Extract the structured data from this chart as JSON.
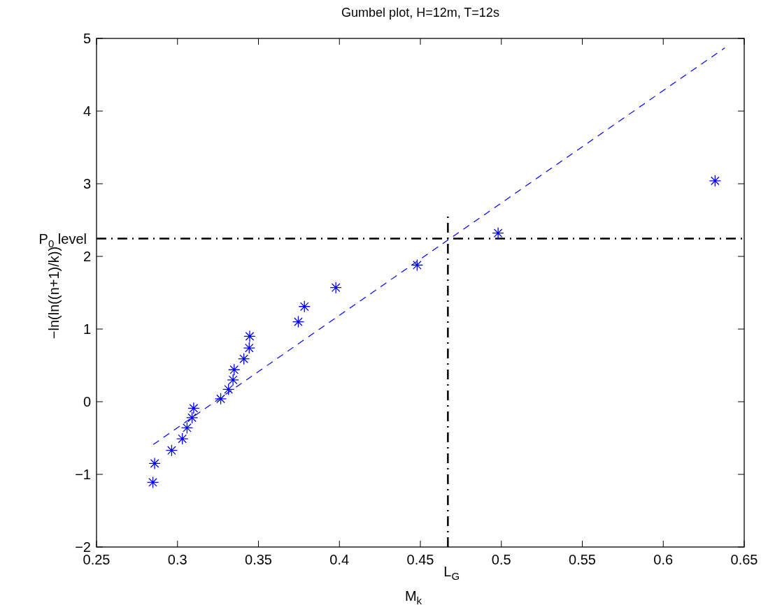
{
  "chart_data": {
    "type": "scatter",
    "title": "Gumbel plot, H=12m, T=12s",
    "xlabel": "M$_{k}$",
    "ylabel": "−ln(ln((n+1)/k))",
    "xlim": [
      0.25,
      0.65
    ],
    "xticks": [
      0.25,
      0.3,
      0.35,
      0.4,
      0.45,
      0.5,
      0.55,
      0.6,
      0.65
    ],
    "ylim": [
      -2,
      5
    ],
    "yticks": [
      -2,
      -1,
      0,
      1,
      2,
      3,
      4,
      5
    ],
    "grid": false,
    "series": [
      {
        "color": "#0000ff",
        "marker": "cross",
        "x": [
          0.2848,
          0.2859,
          0.2964,
          0.303,
          0.3059,
          0.309,
          0.31,
          0.3267,
          0.3315,
          0.3343,
          0.335,
          0.341,
          0.3443,
          0.3446,
          0.3746,
          0.3784,
          0.3978,
          0.448,
          0.498,
          0.632
        ],
        "values": [
          -1.11,
          -0.85,
          -0.67,
          -0.51,
          -0.36,
          -0.22,
          -0.09,
          0.04,
          0.17,
          0.3,
          0.44,
          0.59,
          0.74,
          0.9,
          1.1,
          1.31,
          1.57,
          1.88,
          2.32,
          3.04
        ]
      },
      {
        "type": "line",
        "color": "#0000ff",
        "marker": "none",
        "line_style": "dashed",
        "x": [
          0.285,
          0.638
        ],
        "values": [
          -0.59,
          4.87
        ]
      }
    ],
    "ref_lines": [
      {
        "axis": "y",
        "value": 2.245,
        "label": "P$_{0}$ level",
        "color": "#000000",
        "line_style": "dashdot"
      },
      {
        "axis": "x",
        "value": 0.467,
        "label": "L$_{G}$",
        "color": "#000000",
        "line_style": "dashdot"
      }
    ]
  }
}
